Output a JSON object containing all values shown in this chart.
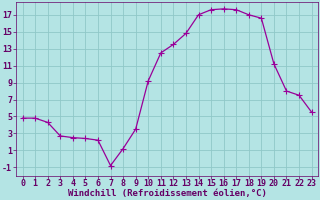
{
  "x": [
    0,
    1,
    2,
    3,
    4,
    5,
    6,
    7,
    8,
    9,
    10,
    11,
    12,
    13,
    14,
    15,
    16,
    17,
    18,
    19,
    20,
    21,
    22,
    23
  ],
  "y": [
    4.8,
    4.8,
    4.3,
    2.7,
    2.5,
    2.4,
    2.2,
    -0.8,
    1.2,
    3.5,
    9.2,
    12.5,
    13.5,
    14.8,
    17.0,
    17.6,
    17.7,
    17.6,
    17.0,
    16.6,
    11.2,
    8.0,
    7.5,
    5.5
  ],
  "line_color": "#990099",
  "marker": "+",
  "marker_size": 4,
  "background_color": "#b4e4e4",
  "grid_color": "#90c8c8",
  "xlabel": "Windchill (Refroidissement éolien,°C)",
  "ylabel": "",
  "xlim": [
    -0.5,
    23.5
  ],
  "ylim": [
    -2.0,
    18.5
  ],
  "yticks": [
    -1,
    1,
    3,
    5,
    7,
    9,
    11,
    13,
    15,
    17
  ],
  "xticks": [
    0,
    1,
    2,
    3,
    4,
    5,
    6,
    7,
    8,
    9,
    10,
    11,
    12,
    13,
    14,
    15,
    16,
    17,
    18,
    19,
    20,
    21,
    22,
    23
  ],
  "tick_color": "#660066",
  "label_color": "#660066",
  "label_fontsize": 6.5,
  "tick_fontsize": 6.0,
  "spine_color": "#660066"
}
